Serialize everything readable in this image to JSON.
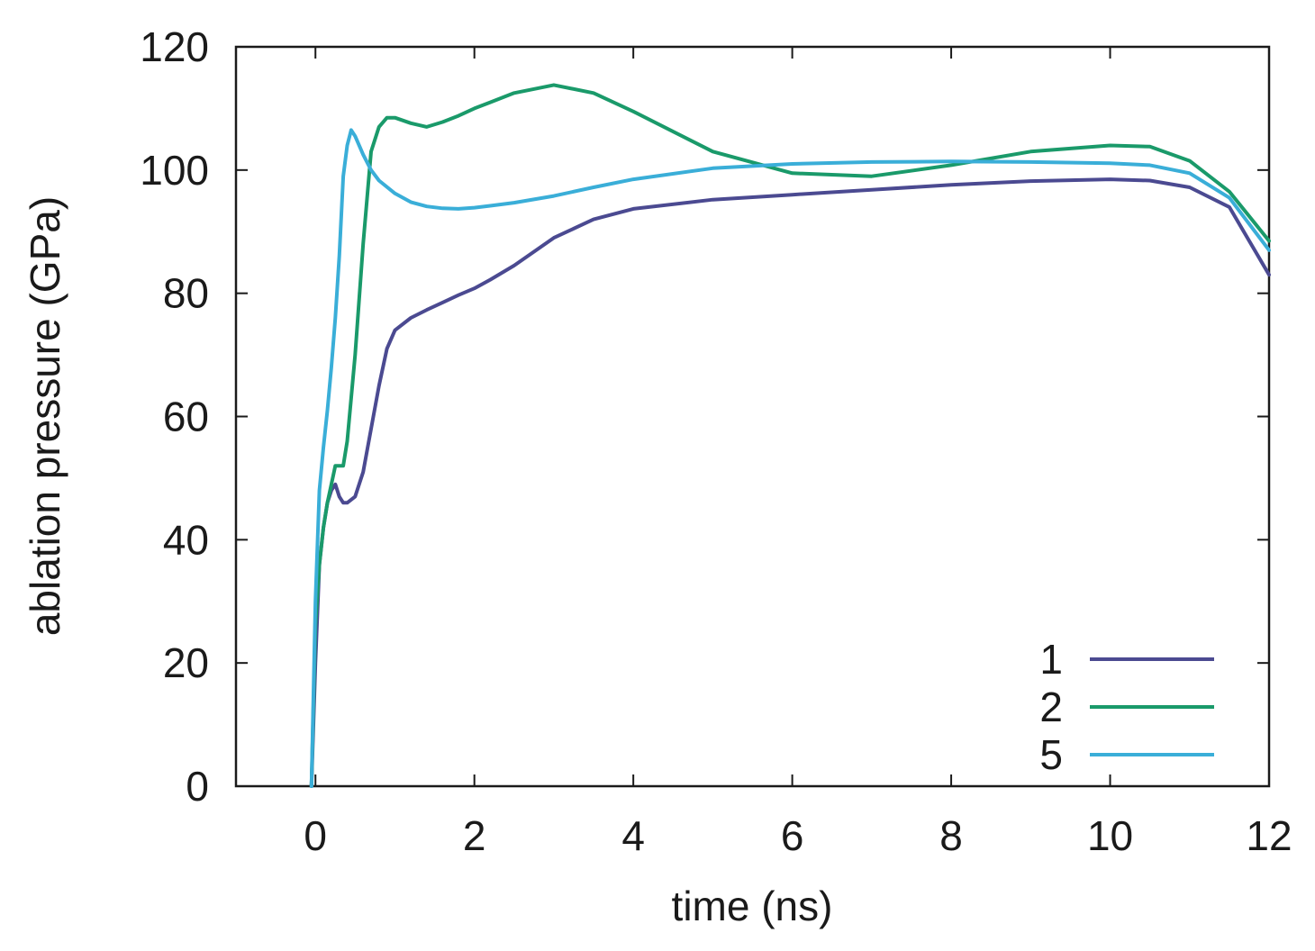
{
  "chart_data": {
    "type": "line",
    "xlabel": "time (ns)",
    "ylabel": "ablation pressure (GPa)",
    "xlim": [
      -1,
      12
    ],
    "ylim": [
      0,
      120
    ],
    "xticks": [
      0,
      2,
      4,
      6,
      8,
      10,
      12
    ],
    "yticks": [
      0,
      20,
      40,
      60,
      80,
      100,
      120
    ],
    "grid": false,
    "legend_position": "bottom-right",
    "series": [
      {
        "name": "1",
        "color": "#4b4a91",
        "x": [
          -0.05,
          0.0,
          0.05,
          0.1,
          0.15,
          0.2,
          0.25,
          0.3,
          0.35,
          0.4,
          0.5,
          0.6,
          0.7,
          0.8,
          0.9,
          1.0,
          1.2,
          1.4,
          1.6,
          1.8,
          2.0,
          2.2,
          2.5,
          3.0,
          3.5,
          4.0,
          5.0,
          6.0,
          7.0,
          8.0,
          9.0,
          10.0,
          10.5,
          11.0,
          11.5,
          12.0
        ],
        "values": [
          0,
          20,
          36,
          42,
          46,
          48,
          49,
          47,
          46,
          46,
          47,
          51,
          58,
          65,
          71,
          74,
          76,
          77.3,
          78.5,
          79.7,
          80.8,
          82.2,
          84.5,
          89,
          92,
          93.7,
          95.2,
          96,
          96.8,
          97.6,
          98.2,
          98.5,
          98.3,
          97.2,
          94,
          83
        ]
      },
      {
        "name": "2",
        "color": "#1a9a6a",
        "x": [
          -0.05,
          0.0,
          0.05,
          0.1,
          0.15,
          0.2,
          0.25,
          0.3,
          0.35,
          0.4,
          0.5,
          0.6,
          0.7,
          0.8,
          0.9,
          1.0,
          1.2,
          1.4,
          1.6,
          1.8,
          2.0,
          2.2,
          2.5,
          3.0,
          3.5,
          4.0,
          5.0,
          6.0,
          7.0,
          8.0,
          9.0,
          10.0,
          10.5,
          11.0,
          11.5,
          12.0
        ],
        "values": [
          0,
          26,
          36,
          42,
          46,
          49,
          52,
          52,
          52,
          56,
          70,
          88,
          103,
          107,
          108.5,
          108.5,
          107.6,
          107,
          107.8,
          108.8,
          110,
          111,
          112.5,
          113.8,
          112.5,
          109.5,
          103,
          99.5,
          99,
          100.8,
          103,
          104,
          103.8,
          101.5,
          96.5,
          88.5
        ]
      },
      {
        "name": "5",
        "color": "#3aaed8",
        "x": [
          -0.05,
          0.0,
          0.05,
          0.1,
          0.15,
          0.2,
          0.25,
          0.3,
          0.35,
          0.4,
          0.45,
          0.5,
          0.6,
          0.7,
          0.8,
          1.0,
          1.2,
          1.4,
          1.6,
          1.8,
          2.0,
          2.2,
          2.5,
          3.0,
          3.5,
          4.0,
          5.0,
          6.0,
          7.0,
          8.0,
          9.0,
          10.0,
          10.5,
          11.0,
          11.5,
          12.0
        ],
        "values": [
          0,
          30,
          48,
          55,
          61,
          68,
          76,
          86,
          99,
          104,
          106.5,
          105.5,
          102.5,
          100,
          98.3,
          96.2,
          94.8,
          94.1,
          93.8,
          93.7,
          93.9,
          94.2,
          94.7,
          95.8,
          97.2,
          98.5,
          100.3,
          101,
          101.3,
          101.4,
          101.3,
          101.1,
          100.8,
          99.5,
          95.5,
          87
        ]
      }
    ]
  }
}
